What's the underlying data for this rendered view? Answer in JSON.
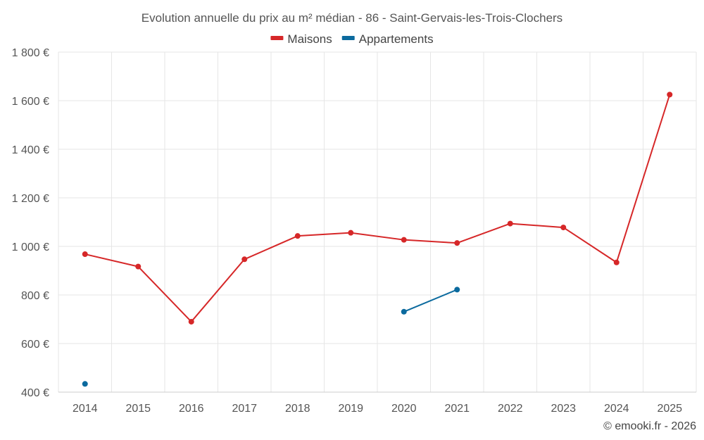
{
  "chart_data": {
    "type": "line",
    "title": "Evolution annuelle du prix au m² médian - 86 - Saint-Gervais-les-Trois-Clochers",
    "categories": [
      "2014",
      "2015",
      "2016",
      "2017",
      "2018",
      "2019",
      "2020",
      "2021",
      "2022",
      "2023",
      "2024",
      "2025"
    ],
    "ylim": [
      400,
      1800
    ],
    "yticks": [
      400,
      600,
      800,
      1000,
      1200,
      1400,
      1600,
      1800
    ],
    "ytick_labels": [
      "400 €",
      "600 €",
      "800 €",
      "1 000 €",
      "1 200 €",
      "1 400 €",
      "1 600 €",
      "1 800 €"
    ],
    "grid": true,
    "legend_position": "top-center",
    "series": [
      {
        "name": "Maisons",
        "color": "#d62728",
        "values": [
          968,
          917,
          690,
          947,
          1043,
          1056,
          1027,
          1014,
          1094,
          1078,
          934,
          1625
        ]
      },
      {
        "name": "Appartements",
        "color": "#0b6a9e",
        "values": [
          434,
          null,
          null,
          null,
          null,
          null,
          731,
          822,
          null,
          null,
          null,
          null
        ]
      }
    ]
  },
  "credit": "© emooki.fr - 2026"
}
